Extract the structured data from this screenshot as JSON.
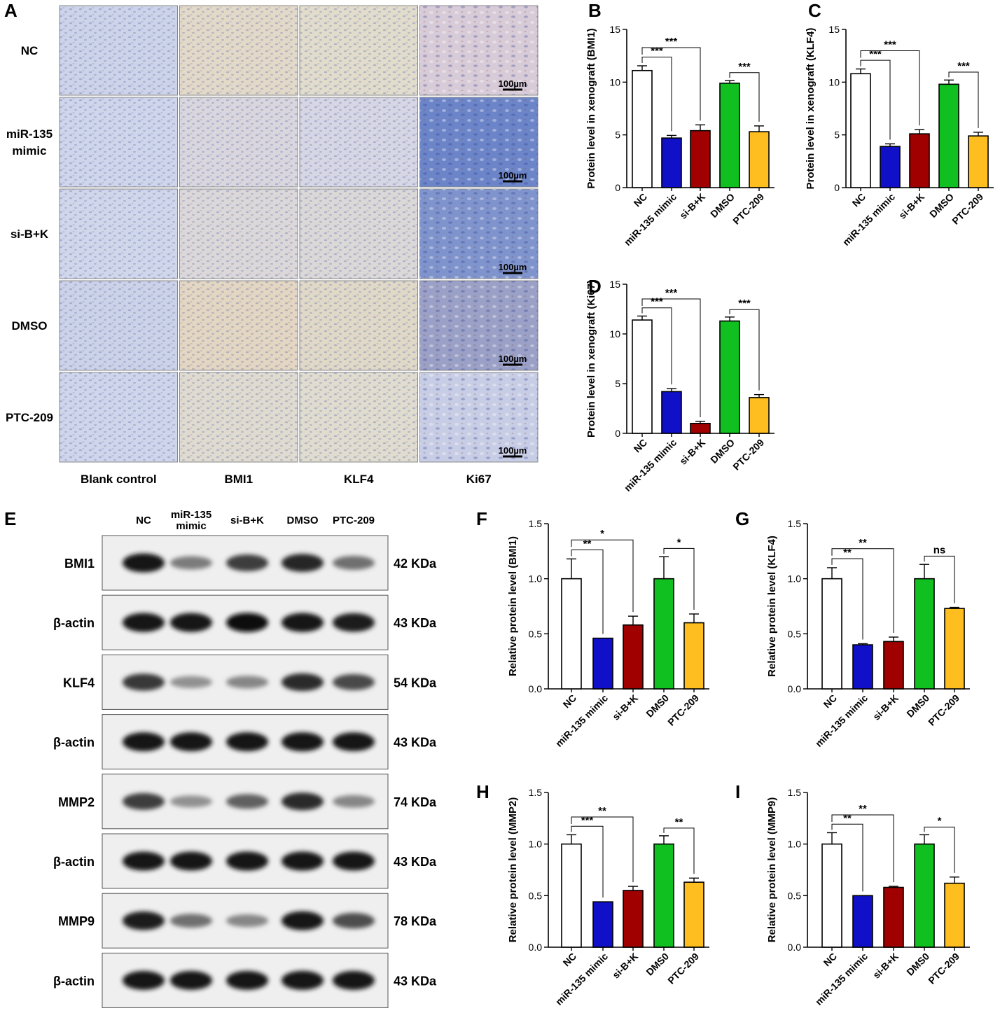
{
  "colors": {
    "NC": "#ffffff",
    "miR-135 mimic": "#1010c8",
    "si-B+K": "#a00000",
    "DMSO": "#10c020",
    "PTC-209": "#ffbe20"
  },
  "ihc": {
    "panel_label": "A",
    "rows": [
      "NC",
      "miR-135\nmimic",
      "si-B+K",
      "DMSO",
      "PTC-209"
    ],
    "columns": [
      "Blank control",
      "BMI1",
      "KLF4",
      "Ki67"
    ],
    "scale_bar": "100µm",
    "tint_colors": [
      [
        "#cdd3e9",
        "#e3d9c9",
        "#e1dccc",
        "#d8cbd8"
      ],
      [
        "#cfd5ea",
        "#d9d6de",
        "#d6d6e4",
        "#6c85c8"
      ],
      [
        "#d1d7eb",
        "#dcd8d9",
        "#dbd8d8",
        "#7f93cc"
      ],
      [
        "#ccd2e8",
        "#e3d6c2",
        "#e0d9c8",
        "#9aa0c6"
      ],
      [
        "#cfd5ea",
        "#dfdbd0",
        "#e0dccf",
        "#c8cde6"
      ]
    ]
  },
  "western": {
    "panel_label": "E",
    "lanes": [
      "NC",
      "miR-135\nmimic",
      "si-B+K",
      "DMSO",
      "PTC-209"
    ],
    "blots": [
      {
        "protein": "BMI1",
        "kda": "42 KDa",
        "intensity": [
          0.95,
          0.5,
          0.78,
          0.88,
          0.55
        ]
      },
      {
        "protein": "β-actin",
        "kda": "43 KDa",
        "intensity": [
          0.95,
          0.95,
          0.97,
          0.96,
          0.92
        ]
      },
      {
        "protein": "KLF4",
        "kda": "54 KDa",
        "intensity": [
          0.8,
          0.4,
          0.45,
          0.85,
          0.72
        ]
      },
      {
        "protein": "β-actin",
        "kda": "43 KDa",
        "intensity": [
          0.95,
          0.95,
          0.95,
          0.96,
          0.94
        ]
      },
      {
        "protein": "MMP2",
        "kda": "74 KDa",
        "intensity": [
          0.78,
          0.4,
          0.62,
          0.85,
          0.45
        ]
      },
      {
        "protein": "β-actin",
        "kda": "43 KDa",
        "intensity": [
          0.95,
          0.95,
          0.96,
          0.96,
          0.95
        ]
      },
      {
        "protein": "MMP9",
        "kda": "78 KDa",
        "intensity": [
          0.92,
          0.55,
          0.45,
          0.95,
          0.7
        ]
      },
      {
        "protein": "β-actin",
        "kda": "43 KDa",
        "intensity": [
          0.95,
          0.95,
          0.95,
          0.96,
          0.95
        ]
      }
    ]
  },
  "chart_data": [
    {
      "id": "B",
      "type": "bar",
      "categories": [
        "NC",
        "miR-135 mimic",
        "si-B+K",
        "DMSO",
        "PTC-209"
      ],
      "values": [
        11.1,
        4.7,
        5.4,
        9.9,
        5.3
      ],
      "errors": [
        0.45,
        0.25,
        0.55,
        0.25,
        0.55
      ],
      "ylabel": "Protein level in xenograft (BMI1)",
      "ylim": [
        0,
        15
      ],
      "yticks": [
        0,
        5,
        10,
        15
      ],
      "ytick_labels": [
        "0",
        "5",
        "10",
        "15"
      ],
      "comparisons": [
        {
          "from": 0,
          "to": 1,
          "label": "***"
        },
        {
          "from": 0,
          "to": 2,
          "label": "***"
        },
        {
          "from": 3,
          "to": 4,
          "label": "***"
        }
      ]
    },
    {
      "id": "C",
      "type": "bar",
      "categories": [
        "NC",
        "miR-135 mimic",
        "si-B+K",
        "DMSO",
        "PTC-209"
      ],
      "values": [
        10.8,
        3.9,
        5.1,
        9.8,
        4.9
      ],
      "errors": [
        0.45,
        0.25,
        0.4,
        0.4,
        0.35
      ],
      "ylabel": "Protein level in xenograft (KLF4)",
      "ylim": [
        0,
        15
      ],
      "yticks": [
        0,
        5,
        10,
        15
      ],
      "ytick_labels": [
        "0",
        "5",
        "10",
        "15"
      ],
      "comparisons": [
        {
          "from": 0,
          "to": 1,
          "label": "***"
        },
        {
          "from": 0,
          "to": 2,
          "label": "***"
        },
        {
          "from": 3,
          "to": 4,
          "label": "***"
        }
      ]
    },
    {
      "id": "D",
      "type": "bar",
      "categories": [
        "NC",
        "miR-135 mimic",
        "si-B+K",
        "DMSO",
        "PTC-209"
      ],
      "values": [
        11.4,
        4.2,
        1.0,
        11.3,
        3.6
      ],
      "errors": [
        0.4,
        0.3,
        0.2,
        0.4,
        0.3
      ],
      "ylabel": "Protein level in xenograft (Ki67)",
      "ylim": [
        0,
        15
      ],
      "yticks": [
        0,
        5,
        10,
        15
      ],
      "ytick_labels": [
        "0",
        "5",
        "10",
        "15"
      ],
      "comparisons": [
        {
          "from": 0,
          "to": 1,
          "label": "***"
        },
        {
          "from": 0,
          "to": 2,
          "label": "***"
        },
        {
          "from": 3,
          "to": 4,
          "label": "***"
        }
      ]
    },
    {
      "id": "F",
      "type": "bar",
      "categories": [
        "NC",
        "miR-135 mimic",
        "si-B+K",
        "DMS0",
        "PTC-209"
      ],
      "values": [
        1.0,
        0.46,
        0.58,
        1.0,
        0.6
      ],
      "errors": [
        0.18,
        0.0,
        0.08,
        0.2,
        0.08
      ],
      "ylabel": "Relative protein level (BMI1)",
      "ylim": [
        0,
        1.5
      ],
      "yticks": [
        0,
        0.5,
        1.0,
        1.5
      ],
      "ytick_labels": [
        "0.0",
        "0.5",
        "1.0",
        "1.5"
      ],
      "comparisons": [
        {
          "from": 0,
          "to": 1,
          "label": "**"
        },
        {
          "from": 0,
          "to": 2,
          "label": "*"
        },
        {
          "from": 3,
          "to": 4,
          "label": "*"
        }
      ]
    },
    {
      "id": "G",
      "type": "bar",
      "categories": [
        "NC",
        "miR-135 mimic",
        "si-B+K",
        "DMS0",
        "PTC-209"
      ],
      "values": [
        1.0,
        0.4,
        0.43,
        1.0,
        0.73
      ],
      "errors": [
        0.1,
        0.01,
        0.04,
        0.13,
        0.01
      ],
      "ylabel": "Relative protein level (KLF4)",
      "ylim": [
        0,
        1.5
      ],
      "yticks": [
        0,
        0.5,
        1.0,
        1.5
      ],
      "ytick_labels": [
        "0.0",
        "0.5",
        "1.0",
        "1.5"
      ],
      "comparisons": [
        {
          "from": 0,
          "to": 1,
          "label": "**"
        },
        {
          "from": 0,
          "to": 2,
          "label": "**"
        },
        {
          "from": 3,
          "to": 4,
          "label": "ns"
        }
      ]
    },
    {
      "id": "H",
      "type": "bar",
      "categories": [
        "NC",
        "miR-135 mimic",
        "si-B+K",
        "DMS0",
        "PTC-209"
      ],
      "values": [
        1.0,
        0.44,
        0.55,
        1.0,
        0.63
      ],
      "errors": [
        0.09,
        0.0,
        0.04,
        0.08,
        0.04
      ],
      "ylabel": "Relative protein level (MMP2)",
      "ylim": [
        0,
        1.5
      ],
      "yticks": [
        0,
        0.5,
        1.0,
        1.5
      ],
      "ytick_labels": [
        "0.0",
        "0.5",
        "1.0",
        "1.5"
      ],
      "comparisons": [
        {
          "from": 0,
          "to": 1,
          "label": "***"
        },
        {
          "from": 0,
          "to": 2,
          "label": "**"
        },
        {
          "from": 3,
          "to": 4,
          "label": "**"
        }
      ]
    },
    {
      "id": "I",
      "type": "bar",
      "categories": [
        "NC",
        "miR-135 mimic",
        "si-B+K",
        "DMS0",
        "PTC-209"
      ],
      "values": [
        1.0,
        0.5,
        0.58,
        1.0,
        0.62
      ],
      "errors": [
        0.11,
        0.0,
        0.01,
        0.09,
        0.06
      ],
      "ylabel": "Relative protein level (MMP9)",
      "ylim": [
        0,
        1.5
      ],
      "yticks": [
        0,
        0.5,
        1.0,
        1.5
      ],
      "ytick_labels": [
        "0.0",
        "0.5",
        "1.0",
        "1.5"
      ],
      "comparisons": [
        {
          "from": 0,
          "to": 1,
          "label": "**"
        },
        {
          "from": 0,
          "to": 2,
          "label": "**"
        },
        {
          "from": 3,
          "to": 4,
          "label": "*"
        }
      ]
    }
  ]
}
